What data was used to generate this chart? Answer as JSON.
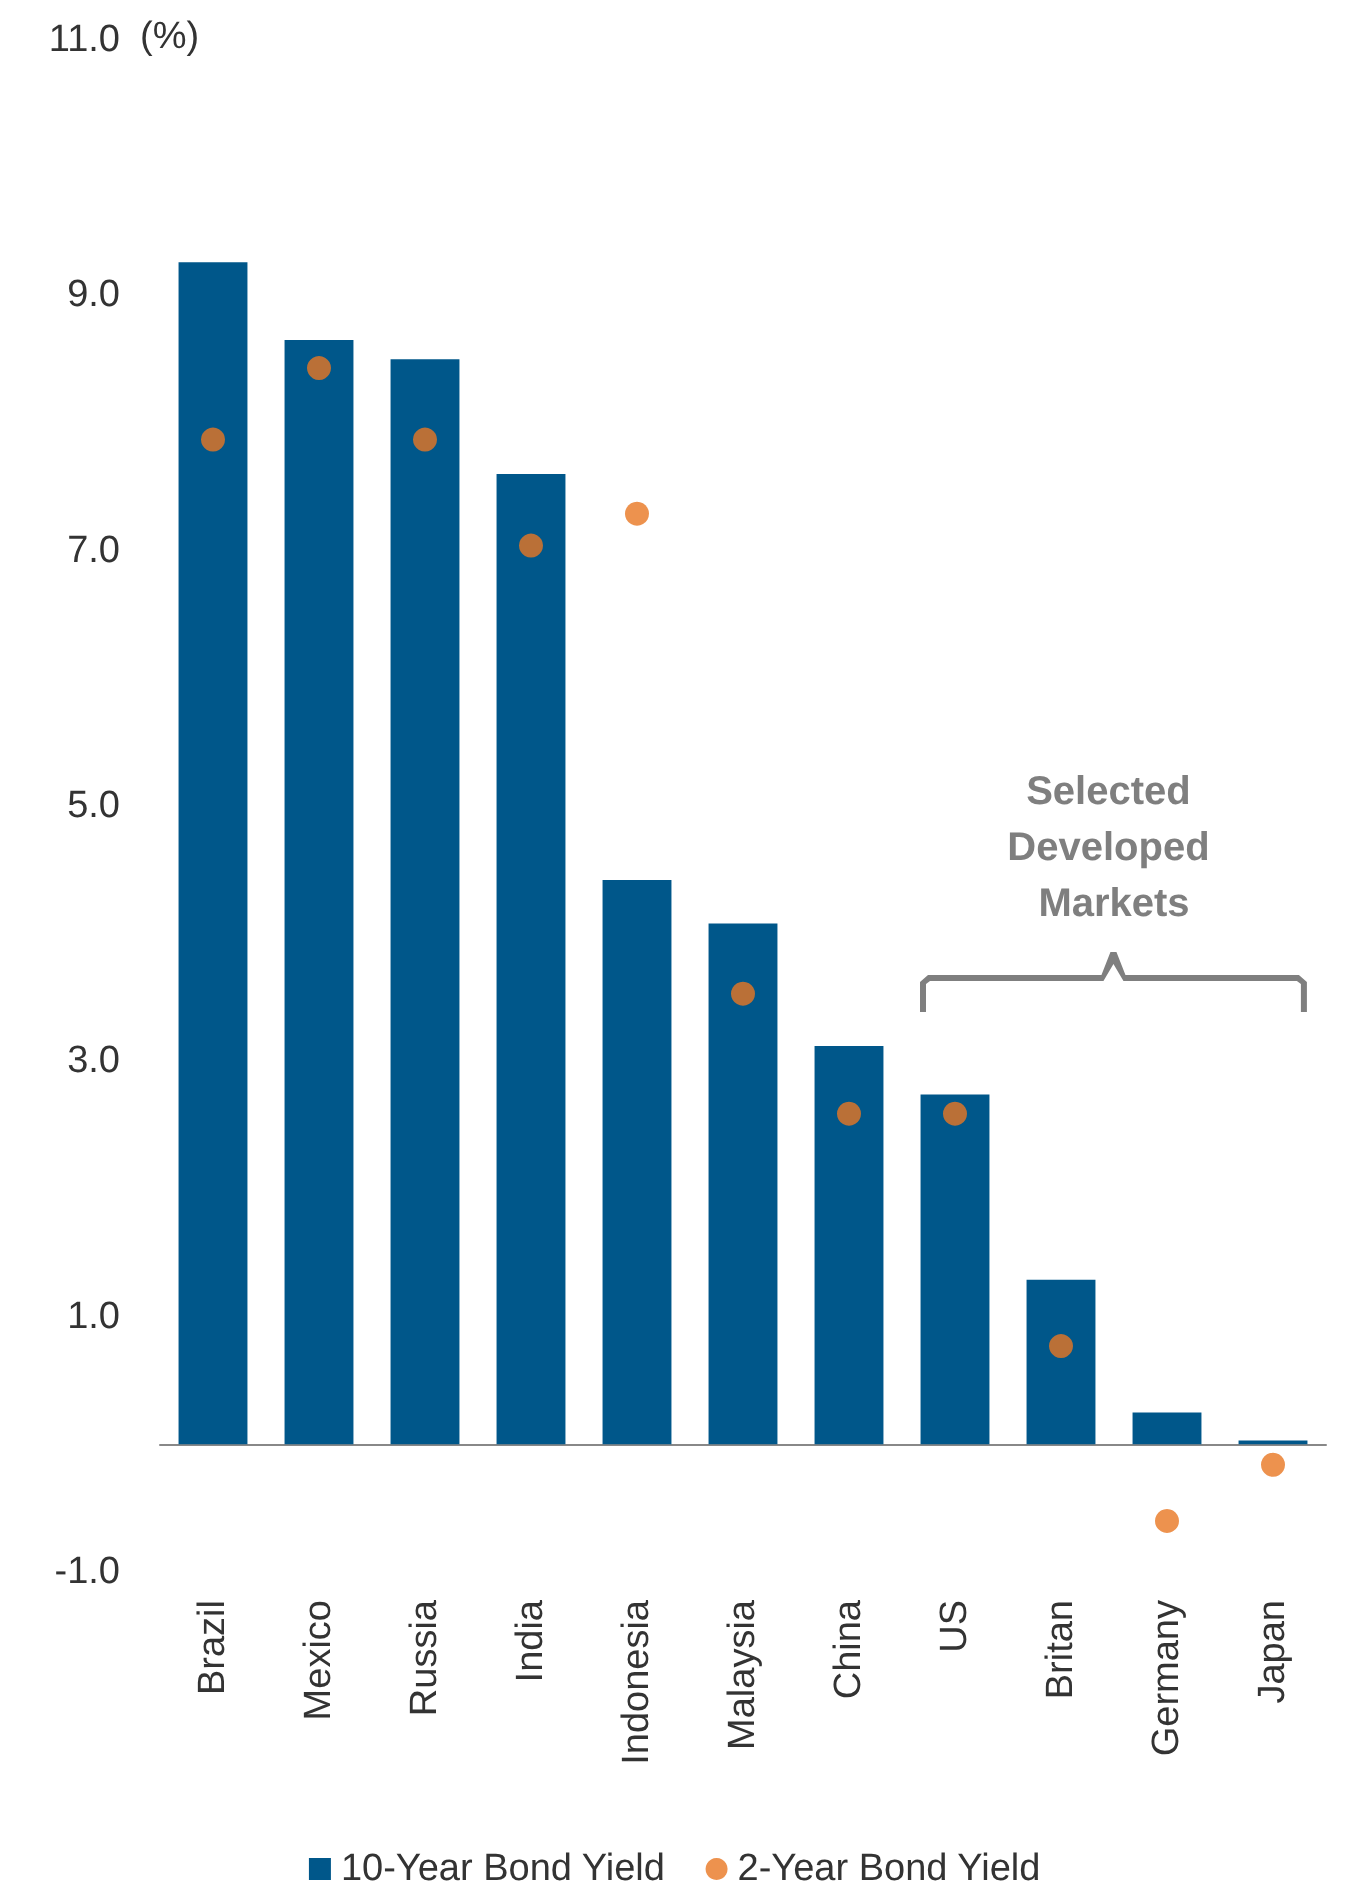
{
  "chart_data": {
    "type": "bar",
    "ylabel": "(%)",
    "categories": [
      "Brazil",
      "Mexico",
      "Russia",
      "India",
      "Indonesia",
      "Malaysia",
      "China",
      "US",
      "Britan",
      "Germany",
      "Japan"
    ],
    "series": [
      {
        "name": "10-Year Bond Yield",
        "type": "bar",
        "color": "#00578a",
        "values": [
          9.26,
          8.65,
          8.5,
          7.6,
          4.42,
          4.08,
          3.12,
          2.74,
          1.29,
          0.25,
          0.03
        ]
      },
      {
        "name": "2-Year Bond Yield",
        "type": "scatter",
        "color": "#e87722",
        "values": [
          7.87,
          8.43,
          7.87,
          7.04,
          7.29,
          3.53,
          2.59,
          2.59,
          0.77,
          -0.6,
          -0.16
        ]
      }
    ],
    "ylim": [
      -1,
      11
    ],
    "yticks": [
      {
        "value": -1,
        "label": "-1.0"
      },
      {
        "value": 1,
        "label": "1.0"
      },
      {
        "value": 3,
        "label": "3.0"
      },
      {
        "value": 5,
        "label": "5.0"
      },
      {
        "value": 7,
        "label": "7.0"
      },
      {
        "value": 9,
        "label": "9.0"
      },
      {
        "value": 11,
        "label": "11.0"
      }
    ],
    "annotations": [
      "Selected Developed Markets"
    ],
    "legend": "bottom",
    "grid": false,
    "marker": "circle"
  }
}
